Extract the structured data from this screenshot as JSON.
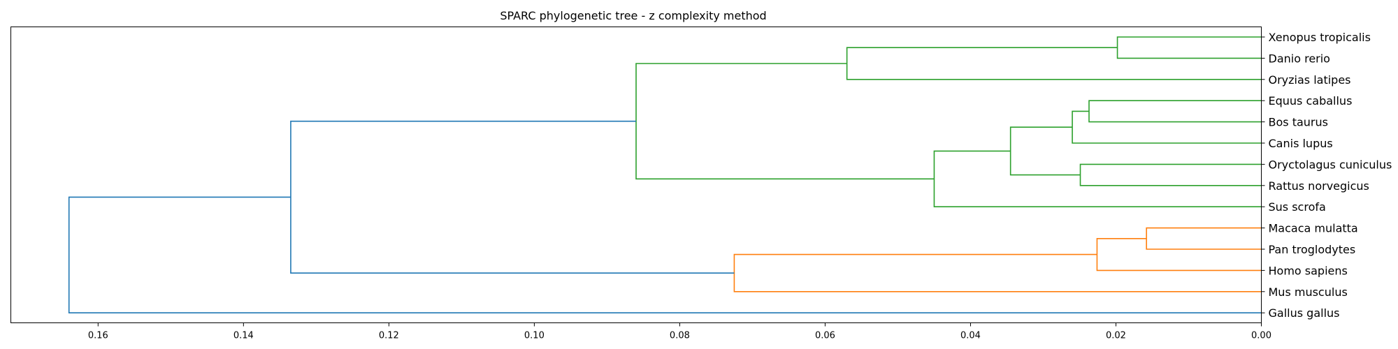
{
  "chart_data": {
    "type": "dendrogram",
    "orientation": "left",
    "title": "SPARC phylogenetic tree - z complexity method",
    "xlabel": "",
    "ylabel": "",
    "xlim": [
      0.172,
      0.0
    ],
    "xticks": [
      "0.16",
      "0.14",
      "0.12",
      "0.10",
      "0.08",
      "0.06",
      "0.04",
      "0.02",
      "0.00"
    ],
    "grid": false,
    "leaves": [
      "Xenopus tropicalis",
      "Danio rerio",
      "Oryzias latipes",
      "Equus caballus",
      "Bos taurus",
      "Canis lupus",
      "Oryctolagus cuniculus",
      "Rattus norvegicus",
      "Sus scrofa",
      "Macaca mulatta",
      "Pan troglodytes",
      "Homo sapiens",
      "Mus musculus",
      "Gallus gallus"
    ],
    "colors": {
      "green": "#2ca02c",
      "orange": "#ff7f0e",
      "blue": "#1f77b4"
    },
    "merges": [
      {
        "children": [
          "Xenopus tropicalis",
          "Danio rerio"
        ],
        "height": 0.0198,
        "color": "green"
      },
      {
        "children": [
          0,
          "Oryzias latipes"
        ],
        "height": 0.057,
        "color": "green"
      },
      {
        "children": [
          "Equus caballus",
          "Bos taurus"
        ],
        "height": 0.0237,
        "color": "green"
      },
      {
        "children": [
          2,
          "Canis lupus"
        ],
        "height": 0.026,
        "color": "green"
      },
      {
        "children": [
          "Oryctolagus cuniculus",
          "Rattus norvegicus"
        ],
        "height": 0.0249,
        "color": "green"
      },
      {
        "children": [
          3,
          4
        ],
        "height": 0.0345,
        "color": "green"
      },
      {
        "children": [
          5,
          "Sus scrofa"
        ],
        "height": 0.045,
        "color": "green"
      },
      {
        "children": [
          1,
          6
        ],
        "height": 0.086,
        "color": "green"
      },
      {
        "children": [
          "Macaca mulatta",
          "Pan troglodytes"
        ],
        "height": 0.0158,
        "color": "orange"
      },
      {
        "children": [
          8,
          "Homo sapiens"
        ],
        "height": 0.0226,
        "color": "orange"
      },
      {
        "children": [
          9,
          "Mus musculus"
        ],
        "height": 0.0725,
        "color": "orange"
      },
      {
        "children": [
          7,
          10
        ],
        "height": 0.1335,
        "color": "blue"
      },
      {
        "children": [
          11,
          "Gallus gallus"
        ],
        "height": 0.164,
        "color": "blue"
      }
    ]
  }
}
